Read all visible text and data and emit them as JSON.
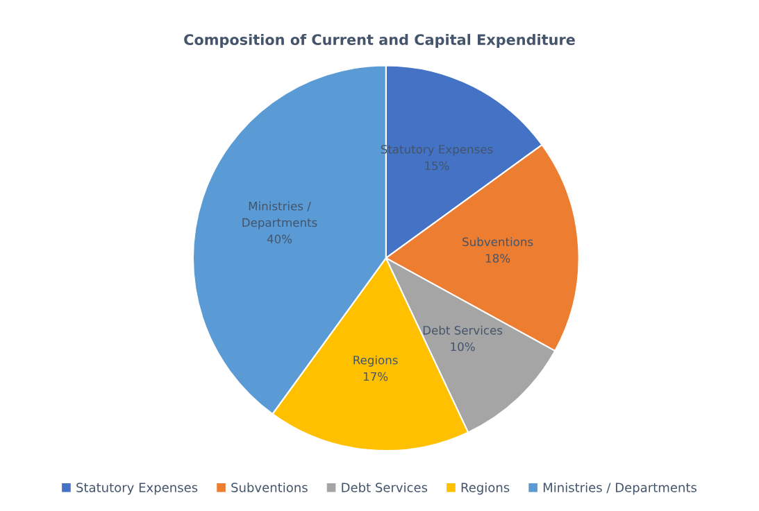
{
  "chart_data": {
    "type": "pie",
    "title": "Composition of Current and Capital Expenditure",
    "categories": [
      "Statutory Expenses",
      "Subventions",
      "Debt Services",
      "Regions",
      "Ministries / Departments"
    ],
    "values": [
      15,
      18,
      10,
      17,
      40
    ],
    "colors": [
      "#4472c4",
      "#ed7d31",
      "#a5a5a5",
      "#ffc000",
      "#5b9bd5"
    ],
    "value_labels": [
      "15%",
      "18%",
      "10%",
      "17%",
      "40%"
    ],
    "legend": "bottom"
  }
}
